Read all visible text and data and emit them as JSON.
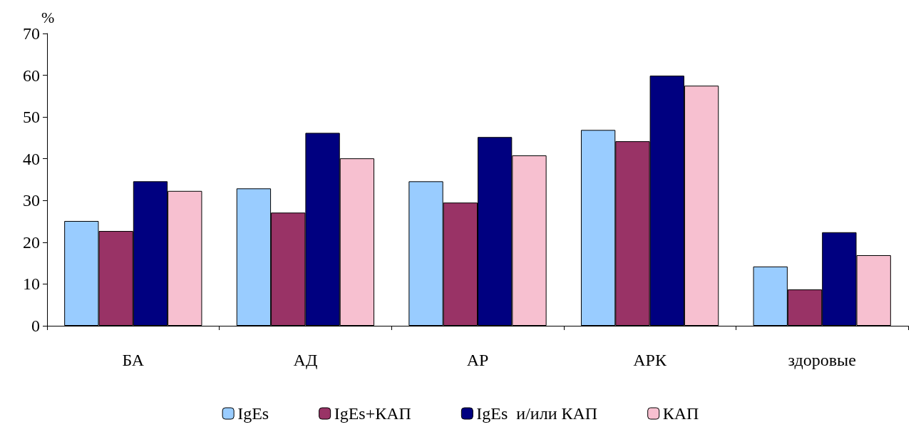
{
  "chart_data": {
    "type": "bar",
    "ylabel": "%",
    "categories": [
      "БА",
      "АД",
      "АР",
      "АРК",
      "здоровые"
    ],
    "series": [
      {
        "name": "IgEs",
        "color": "#99ccff",
        "values": [
          25.1,
          32.9,
          34.6,
          46.9,
          14.2
        ]
      },
      {
        "name": "IgEs+КАП",
        "color": "#993366",
        "values": [
          22.7,
          27.1,
          29.5,
          44.2,
          8.7
        ]
      },
      {
        "name": "IgEs  и/или КАП",
        "color": "#000080",
        "values": [
          34.6,
          46.2,
          45.2,
          59.9,
          22.4
        ]
      },
      {
        "name": "КАП",
        "color": "#f7c0d0",
        "values": [
          32.3,
          40.1,
          40.8,
          57.5,
          16.9
        ]
      }
    ],
    "ylim": [
      0,
      70
    ],
    "yticks": [
      0,
      10,
      20,
      30,
      40,
      50,
      60,
      70
    ],
    "grid": false,
    "legend": "bottom"
  }
}
